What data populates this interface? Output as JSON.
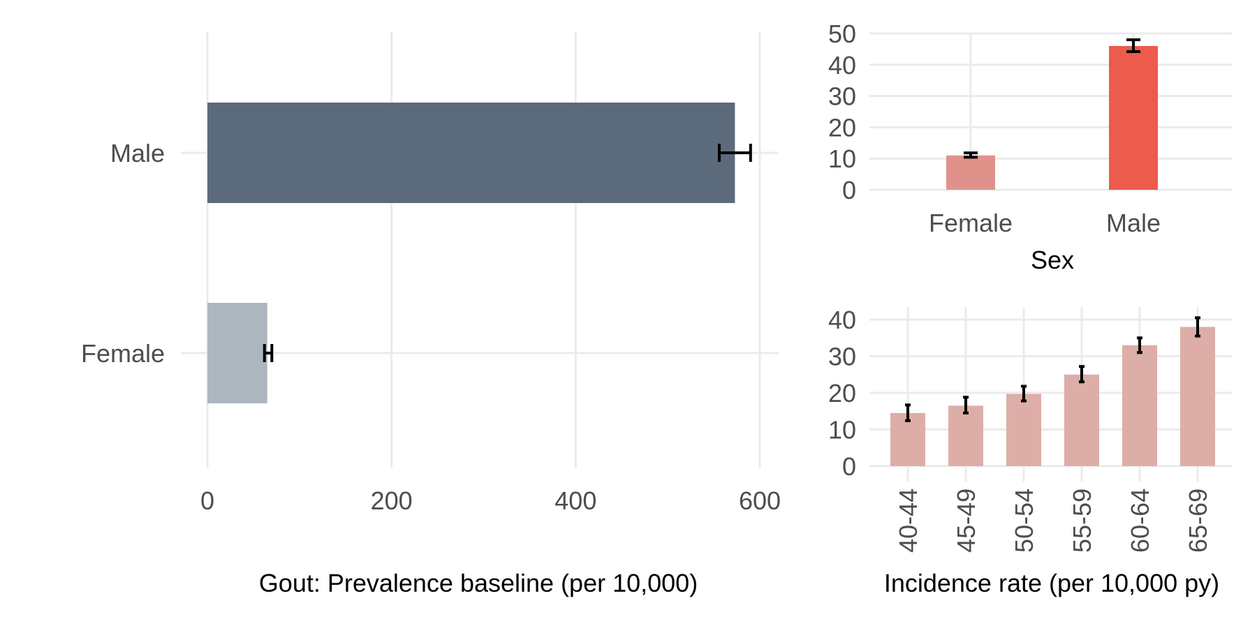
{
  "chart_data": [
    {
      "id": "prevalence",
      "type": "bar",
      "orientation": "horizontal",
      "title": "",
      "xlabel": "Gout: Prevalence baseline (per 10,000)",
      "ylabel": "",
      "xlim": [
        0,
        620
      ],
      "xticks": [
        "0",
        "200",
        "400",
        "600"
      ],
      "xtick_values": [
        0,
        200,
        400,
        600
      ],
      "grid": true,
      "categories": [
        "Male",
        "Female"
      ],
      "values": [
        573,
        65
      ],
      "error_low": [
        556,
        62
      ],
      "error_high": [
        590,
        70
      ],
      "colors": [
        "#5c6b7b",
        "#adb5bf"
      ]
    },
    {
      "id": "incidence-sex",
      "type": "bar",
      "title": "",
      "xlabel": "Sex",
      "ylabel": "",
      "ylim": [
        0,
        50
      ],
      "yticks": [
        "0",
        "10",
        "20",
        "30",
        "40",
        "50"
      ],
      "ytick_values": [
        0,
        10,
        20,
        30,
        40,
        50
      ],
      "grid": true,
      "categories": [
        "Female",
        "Male"
      ],
      "values": [
        11,
        46
      ],
      "error_low": [
        10.4,
        44.2
      ],
      "error_high": [
        11.8,
        48
      ],
      "colors": [
        "#e0928a",
        "#ec5b4b"
      ]
    },
    {
      "id": "incidence-age",
      "type": "bar",
      "title": "",
      "xlabel": "Incidence rate (per 10,000 py)",
      "ylabel": "",
      "ylim": [
        0,
        40
      ],
      "yticks": [
        "0",
        "10",
        "20",
        "30",
        "40"
      ],
      "ytick_values": [
        0,
        10,
        20,
        30,
        40
      ],
      "grid": true,
      "categories": [
        "40-44",
        "45-49",
        "50-54",
        "55-59",
        "60-64",
        "65-69"
      ],
      "values": [
        14.5,
        16.5,
        19.7,
        25,
        33,
        38
      ],
      "error_low": [
        12.4,
        14.5,
        17.8,
        23,
        31,
        35.5
      ],
      "error_high": [
        16.7,
        18.8,
        21.8,
        27.2,
        35,
        40.5
      ],
      "colors": [
        "#dcaea7"
      ]
    }
  ]
}
